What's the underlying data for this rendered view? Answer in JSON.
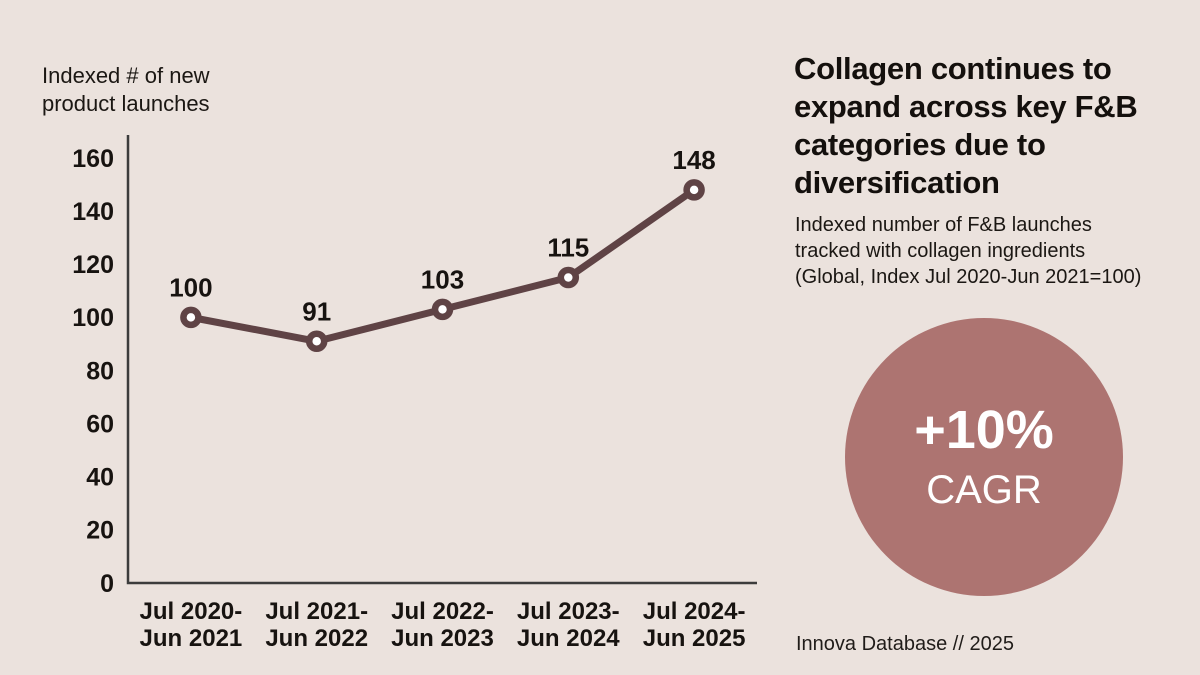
{
  "axis_title": [
    "Indexed # of new",
    "product launches"
  ],
  "headline": [
    "Collagen continues to",
    "expand across key F&B",
    "categories due to",
    "diversification"
  ],
  "subtitle": [
    "Indexed number of F&B launches",
    "tracked with collagen ingredients",
    "(Global, Index Jul 2020-Jun 2021=100)"
  ],
  "badge": {
    "value": "+10%",
    "label": "CAGR"
  },
  "source": "Innova Database // 2025",
  "colors": {
    "background": "#ebe2dd",
    "line": "#5f4345",
    "marker_fill": "#ffffff",
    "badge": "#ad7471",
    "axis": "#3c3c3c",
    "text": "#171310"
  },
  "chart_data": {
    "type": "line",
    "title": "Indexed # of new product launches",
    "categories": [
      [
        "Jul 2020-",
        "Jun 2021"
      ],
      [
        "Jul 2021-",
        "Jun 2022"
      ],
      [
        "Jul 2022-",
        "Jun 2023"
      ],
      [
        "Jul 2023-",
        "Jun 2024"
      ],
      [
        "Jul 2024-",
        "Jun 2025"
      ]
    ],
    "values": [
      100,
      91,
      103,
      115,
      148
    ],
    "y_ticks": [
      0,
      20,
      40,
      60,
      80,
      100,
      120,
      140,
      160
    ],
    "ylim": [
      0,
      160
    ],
    "xlabel": "",
    "ylabel": "Indexed # of new product launches",
    "grid": false,
    "legend": "none",
    "marker": "open-circle",
    "data_labels": true
  }
}
